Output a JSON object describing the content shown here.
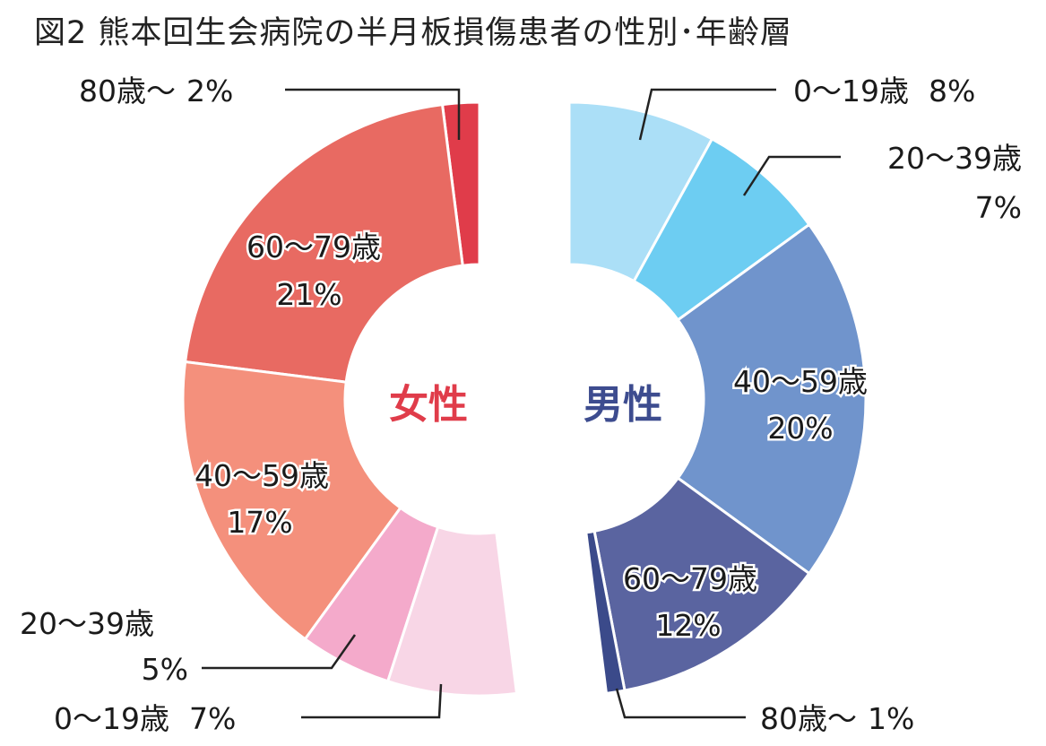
{
  "chart_data": {
    "type": "pie",
    "title": "図2 熊本回生会病院の半月板損傷患者の性別･年齢層",
    "groups": [
      {
        "name": "女性",
        "color": "#e03c4a",
        "slices": [
          {
            "label": "80歳～",
            "value": 2,
            "text": "2%",
            "color": "#e03c4a"
          },
          {
            "label": "60～79歳",
            "value": 21,
            "text": "21%",
            "color": "#e86a62"
          },
          {
            "label": "40～59歳",
            "value": 17,
            "text": "17%",
            "color": "#f4907c"
          },
          {
            "label": "20～39歳",
            "value": 5,
            "text": "5%",
            "color": "#f4aacb"
          },
          {
            "label": "0～19歳",
            "value": 7,
            "text": "7%",
            "color": "#f8d6e6"
          }
        ]
      },
      {
        "name": "男性",
        "color": "#3d4c8f",
        "slices": [
          {
            "label": "0～19歳",
            "value": 8,
            "text": "8%",
            "color": "#abdff7"
          },
          {
            "label": "20～39歳",
            "value": 7,
            "text": "7%",
            "color": "#6dcdf2"
          },
          {
            "label": "40～59歳",
            "value": 20,
            "text": "20%",
            "color": "#7094cc"
          },
          {
            "label": "60～79歳",
            "value": 12,
            "text": "12%",
            "color": "#5a64a0"
          },
          {
            "label": "80歳～",
            "value": 1,
            "text": "1%",
            "color": "#3b4a8a"
          }
        ]
      }
    ]
  }
}
